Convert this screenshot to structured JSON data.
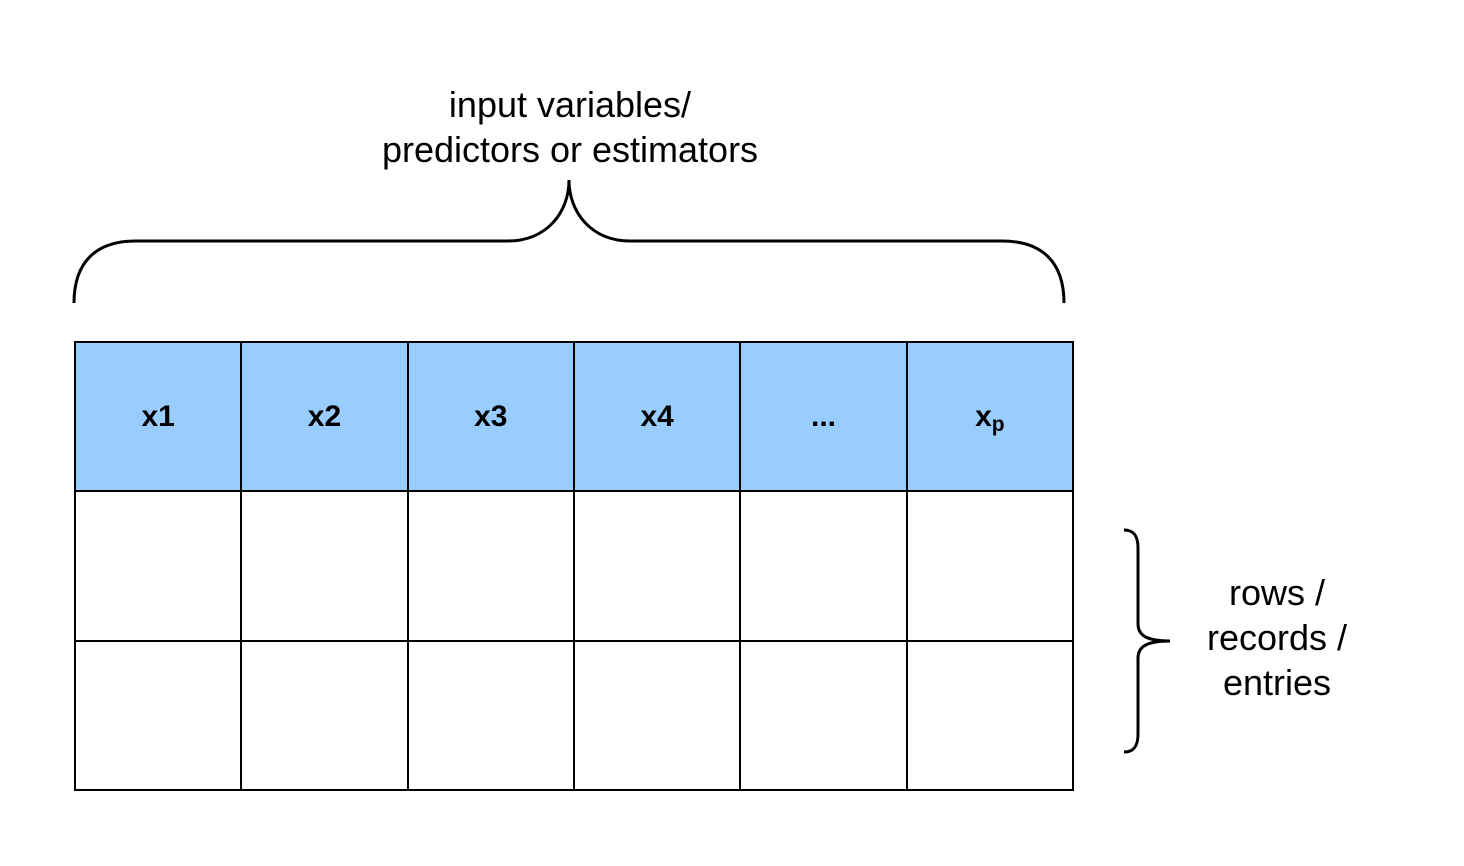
{
  "top_label": {
    "line1": "input variables/",
    "line2": "predictors or estimators"
  },
  "side_label": {
    "line1": "rows /",
    "line2": "records /",
    "line3": "entries"
  },
  "columns": [
    {
      "label": "x1"
    },
    {
      "label": "x2"
    },
    {
      "label": "x3"
    },
    {
      "label": "x4"
    },
    {
      "label": "..."
    },
    {
      "label": "x",
      "subscript": "p"
    }
  ],
  "colors": {
    "header_fill": "#99ccff",
    "line": "#000000"
  }
}
